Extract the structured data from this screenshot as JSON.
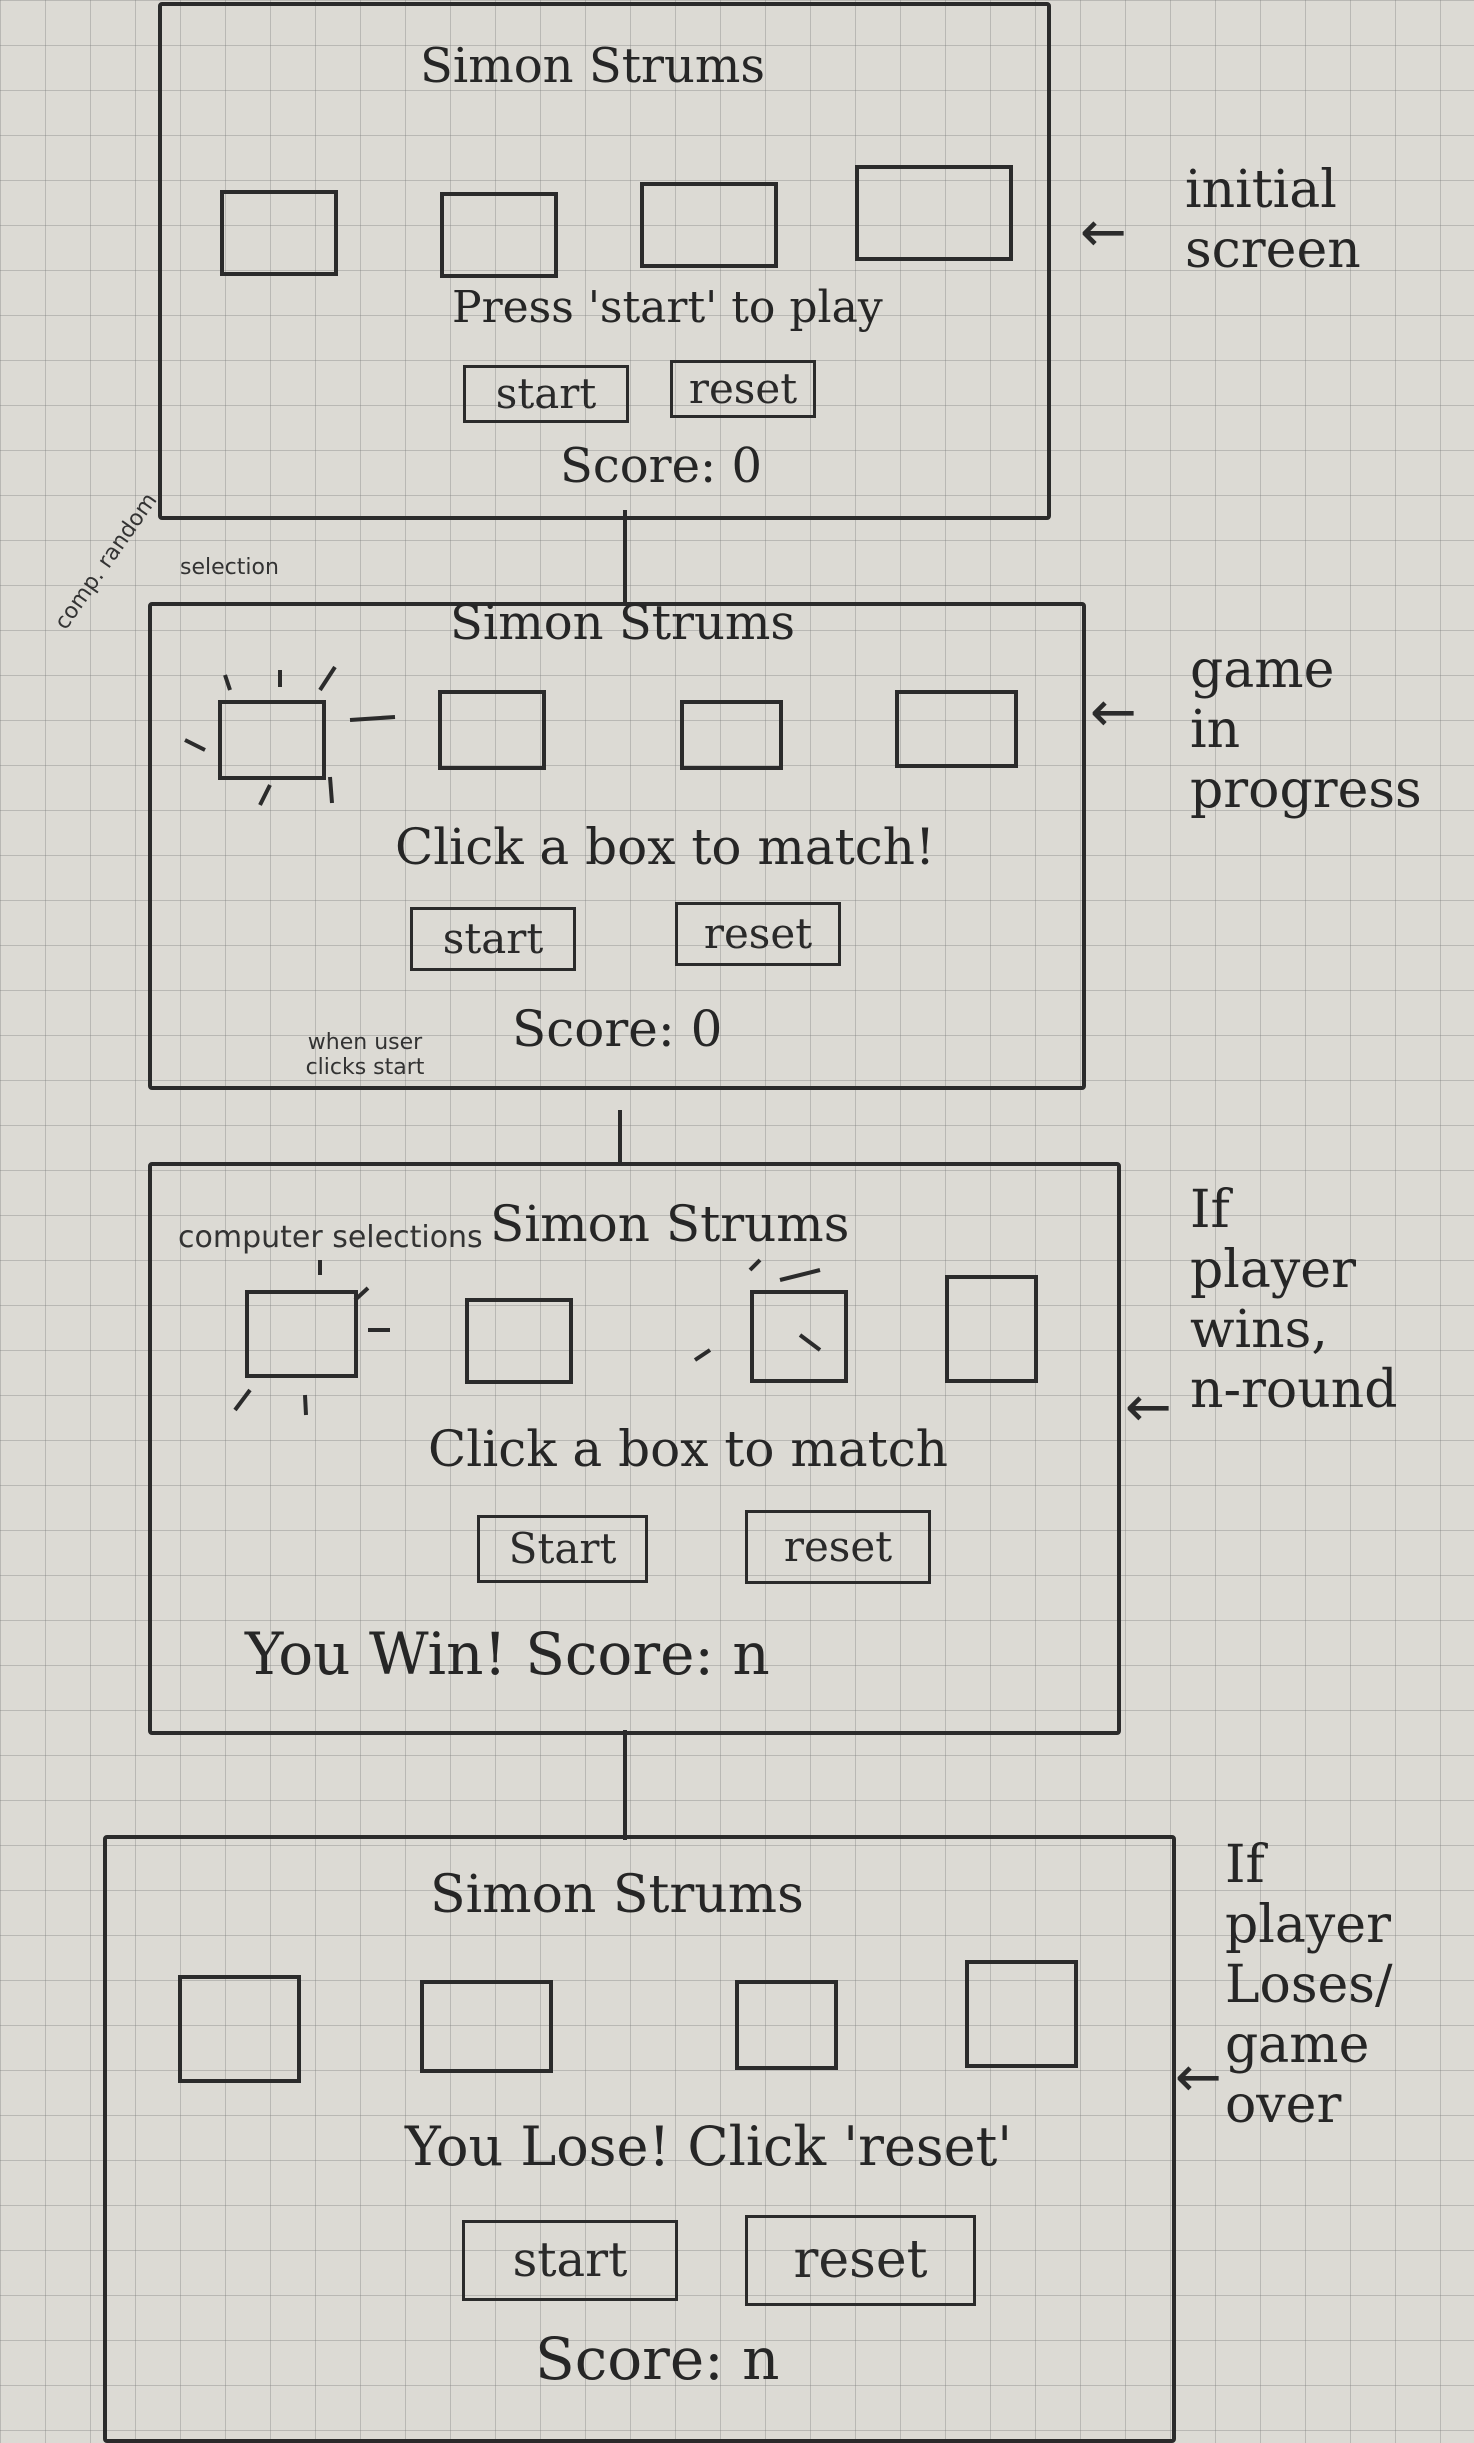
{
  "title": "Simon Strums",
  "screens": [
    {
      "label": "initial\nscreen",
      "message": "Press 'start' to play",
      "start": "start",
      "reset": "reset",
      "score": "Score: 0"
    },
    {
      "label": "game\nin\nprogress",
      "message": "Click a box to match!",
      "start": "start",
      "reset": "reset",
      "score": "Score: 0"
    },
    {
      "label": "If\nplayer\nwins,\nn-round",
      "message": "Click a box to match",
      "start": "Start",
      "reset": "reset",
      "score": "You Win! Score: n"
    },
    {
      "label": "If\nplayer\nLoses/\ngame\nover",
      "message": "You Lose! Click 'reset'",
      "start": "start",
      "reset": "reset",
      "score": "Score: n"
    }
  ],
  "annotations": {
    "comp_random": "comp. random",
    "selection": "selection",
    "when_user_clicks_start": "when user clicks start",
    "computer_selections": "computer selections"
  }
}
